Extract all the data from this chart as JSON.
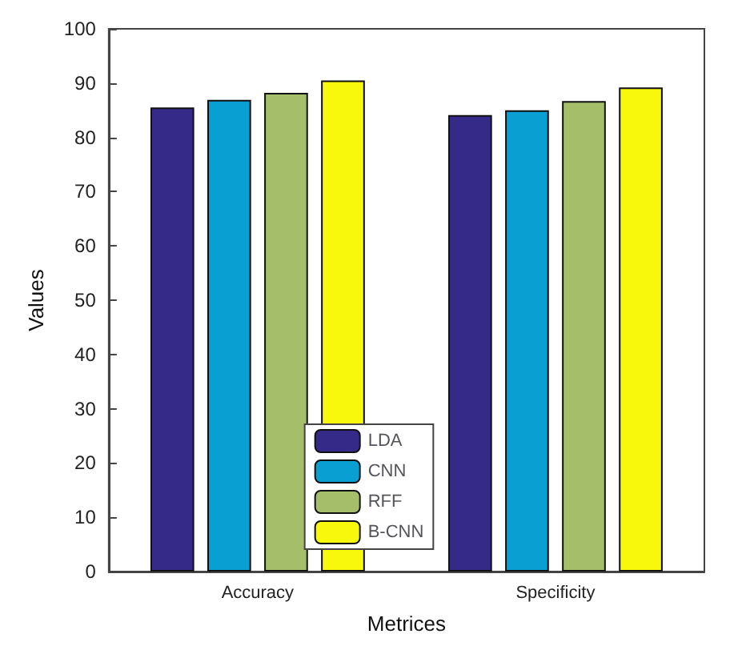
{
  "chart_data": {
    "type": "bar",
    "xlabel": "Metrices",
    "ylabel": "Values",
    "categories": [
      "Accuracy",
      "Specificity"
    ],
    "series": [
      {
        "name": "LDA",
        "color": "#352a87",
        "values": [
          85.5,
          84.1
        ]
      },
      {
        "name": "CNN",
        "color": "#0a9fd3",
        "values": [
          86.9,
          85.0
        ]
      },
      {
        "name": "RFF",
        "color": "#a5be6a",
        "values": [
          88.2,
          86.7
        ]
      },
      {
        "name": "B-CNN",
        "color": "#f8f80d",
        "values": [
          90.5,
          89.2
        ]
      }
    ],
    "ylim": [
      0,
      100
    ],
    "yticks": [
      0,
      10,
      20,
      30,
      40,
      50,
      60,
      70,
      80,
      90,
      100
    ],
    "grid": false,
    "legend": "bottom"
  }
}
